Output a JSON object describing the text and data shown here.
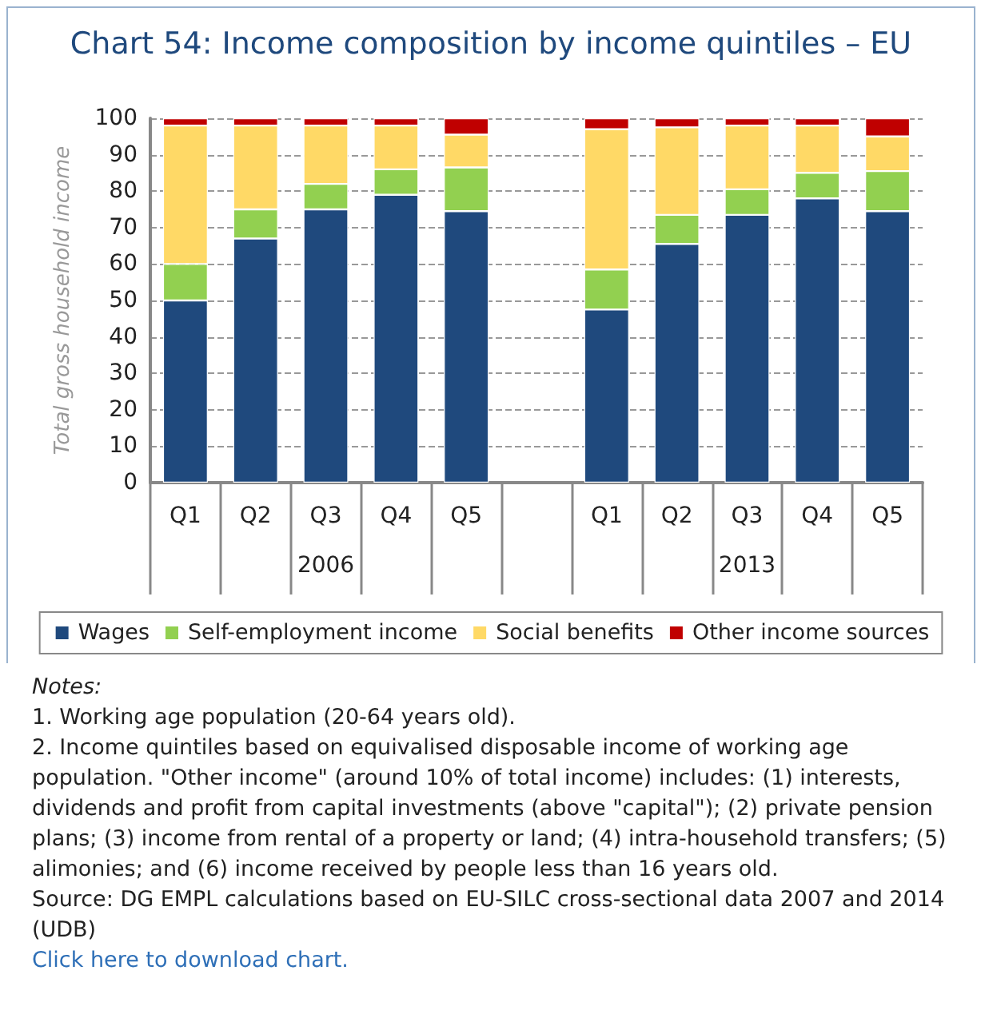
{
  "chart_data": {
    "type": "bar",
    "stacked": true,
    "title": "Chart 54: Income composition by income quintiles – EU",
    "ylabel": "Total gross household income",
    "categories": [
      "Q1",
      "Q2",
      "Q3",
      "Q4",
      "Q5",
      null,
      "Q1",
      "Q2",
      "Q3",
      "Q4",
      "Q5"
    ],
    "series": [
      {
        "name": "Wages",
        "color": "#1f497d",
        "values": [
          50,
          67,
          75,
          79,
          74.5,
          null,
          47.5,
          65.5,
          73.5,
          78,
          74.5
        ]
      },
      {
        "name": "Self-employment income",
        "color": "#92d050",
        "values": [
          10,
          8,
          7,
          7,
          12,
          null,
          11,
          8,
          7,
          7,
          11
        ]
      },
      {
        "name": "Social benefits",
        "color": "#ffd966",
        "values": [
          38,
          23,
          16,
          12,
          9,
          null,
          38.5,
          24,
          17.5,
          13,
          9.5
        ]
      },
      {
        "name": "Other income sources",
        "color": "#c00000",
        "values": [
          2,
          2,
          2,
          2,
          4.5,
          null,
          3,
          2.5,
          2,
          2,
          5
        ]
      }
    ],
    "ylim": [
      0,
      100
    ],
    "yticks": [
      0,
      10,
      20,
      30,
      40,
      50,
      60,
      70,
      80,
      90,
      100
    ],
    "grid": "y",
    "legend": "bottom",
    "annotations": [
      "2006",
      "2013",
      "Notes:",
      "1. Working age population (20-64 years old).",
      "2. Income quintiles based on equivalised disposable income of working age population. \"Other income\" (around 10% of total income) includes:  (1) interests, dividends and profit from capital investments (above \"capital\"); (2) private pension plans; (3) income from rental of a property or land; (4) intra-household transfers; (5) alimonies; and (6) income received by people less than 16 years old.",
      "Source: DG EMPL calculations based on EU-SILC cross-sectional data 2007 and 2014 (UDB)",
      "Click here to download chart."
    ]
  }
}
